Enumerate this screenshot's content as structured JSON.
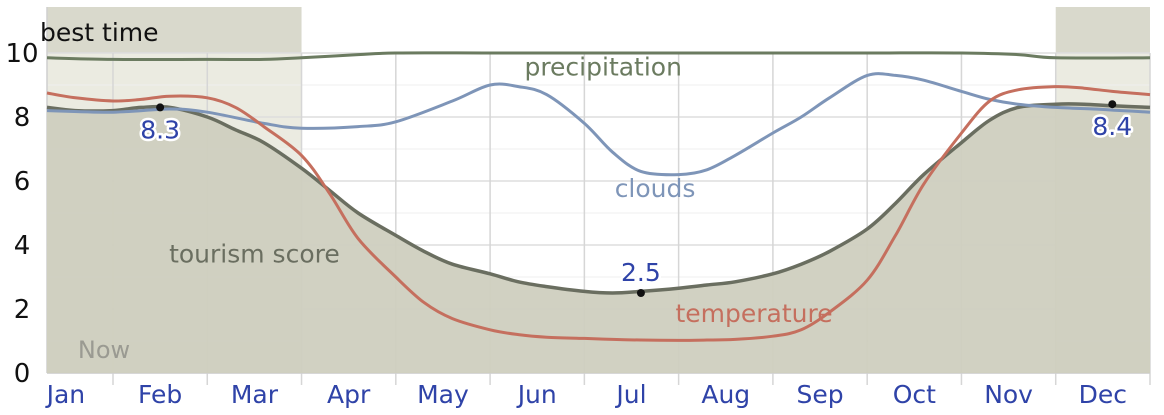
{
  "chart_data": {
    "type": "line",
    "title": "",
    "xlabel": "",
    "ylabel": "",
    "ylim": [
      0,
      10
    ],
    "y_ticks": [
      "0",
      "2",
      "4",
      "6",
      "8",
      "10"
    ],
    "categories": [
      "Jan",
      "Feb",
      "Mar",
      "Apr",
      "May",
      "Jun",
      "Jul",
      "Aug",
      "Sep",
      "Oct",
      "Nov",
      "Dec"
    ],
    "x_month_range": [
      0.3,
      12.0
    ],
    "grid": true,
    "series": [
      {
        "name": "tourism score",
        "kind": "area",
        "color": "#6a6e60",
        "fill": "#cfcfbf",
        "x": [
          0.3,
          0.6,
          1.0,
          1.3,
          1.6,
          2.0,
          2.3,
          2.6,
          3.0,
          3.3,
          3.6,
          4.0,
          4.3,
          4.6,
          5.0,
          5.3,
          5.6,
          6.0,
          6.3,
          6.6,
          7.0,
          7.3,
          7.6,
          8.0,
          8.3,
          8.6,
          9.0,
          9.3,
          9.6,
          10.0,
          10.3,
          10.6,
          11.0,
          11.3,
          11.6,
          12.0
        ],
        "values": [
          8.3,
          8.2,
          8.2,
          8.3,
          8.3,
          8.0,
          7.6,
          7.2,
          6.4,
          5.7,
          5.0,
          4.3,
          3.8,
          3.4,
          3.1,
          2.85,
          2.7,
          2.55,
          2.5,
          2.55,
          2.65,
          2.75,
          2.85,
          3.1,
          3.4,
          3.8,
          4.5,
          5.3,
          6.2,
          7.2,
          7.9,
          8.3,
          8.4,
          8.4,
          8.35,
          8.3
        ]
      },
      {
        "name": "precipitation",
        "kind": "line",
        "color": "#6b7b60",
        "x": [
          0.3,
          1.0,
          2.0,
          2.6,
          3.0,
          3.6,
          4.0,
          5.0,
          6.0,
          7.0,
          8.0,
          9.0,
          10.0,
          10.6,
          11.0,
          12.0
        ],
        "values": [
          9.85,
          9.8,
          9.8,
          9.8,
          9.85,
          9.95,
          10.0,
          10.0,
          10.0,
          10.0,
          10.0,
          10.0,
          10.0,
          9.95,
          9.85,
          9.85
        ]
      },
      {
        "name": "clouds",
        "kind": "line",
        "color": "#7e95b8",
        "x": [
          0.3,
          1.0,
          1.6,
          2.0,
          2.6,
          3.0,
          3.6,
          4.0,
          4.6,
          5.0,
          5.3,
          5.6,
          6.0,
          6.3,
          6.6,
          7.0,
          7.3,
          7.6,
          8.0,
          8.3,
          8.6,
          9.0,
          9.3,
          9.6,
          10.0,
          10.3,
          10.6,
          11.0,
          11.4,
          11.7,
          12.0
        ],
        "values": [
          8.2,
          8.15,
          8.25,
          8.15,
          7.8,
          7.65,
          7.7,
          7.85,
          8.5,
          9.0,
          8.95,
          8.7,
          7.8,
          6.9,
          6.3,
          6.2,
          6.35,
          6.8,
          7.5,
          8.0,
          8.6,
          9.3,
          9.3,
          9.15,
          8.8,
          8.55,
          8.4,
          8.3,
          8.25,
          8.2,
          8.15
        ]
      },
      {
        "name": "temperature",
        "kind": "line",
        "color": "#c56f5e",
        "x": [
          0.3,
          0.6,
          1.0,
          1.3,
          1.6,
          2.0,
          2.3,
          2.6,
          3.0,
          3.3,
          3.6,
          4.0,
          4.3,
          4.6,
          5.0,
          5.3,
          5.6,
          6.0,
          6.3,
          6.6,
          7.0,
          7.3,
          7.6,
          8.0,
          8.3,
          8.6,
          9.0,
          9.3,
          9.6,
          10.0,
          10.3,
          10.6,
          11.0,
          11.3,
          11.6,
          12.0
        ],
        "values": [
          8.75,
          8.6,
          8.5,
          8.55,
          8.65,
          8.6,
          8.3,
          7.7,
          6.8,
          5.6,
          4.2,
          3.0,
          2.2,
          1.7,
          1.35,
          1.2,
          1.12,
          1.08,
          1.05,
          1.03,
          1.02,
          1.03,
          1.05,
          1.15,
          1.35,
          1.9,
          2.9,
          4.3,
          5.9,
          7.5,
          8.5,
          8.85,
          8.95,
          8.9,
          8.8,
          8.7
        ]
      }
    ],
    "annotations": [
      {
        "label": "8.3",
        "x": 1.5,
        "y": 8.3
      },
      {
        "label": "2.5",
        "x": 6.6,
        "y": 2.5
      },
      {
        "label": "8.4",
        "x": 11.6,
        "y": 8.4
      }
    ],
    "best_time": {
      "label": "best time",
      "ranges": [
        [
          0.3,
          3.0
        ],
        [
          11.0,
          12.0
        ]
      ]
    },
    "now": {
      "label": "Now"
    }
  }
}
